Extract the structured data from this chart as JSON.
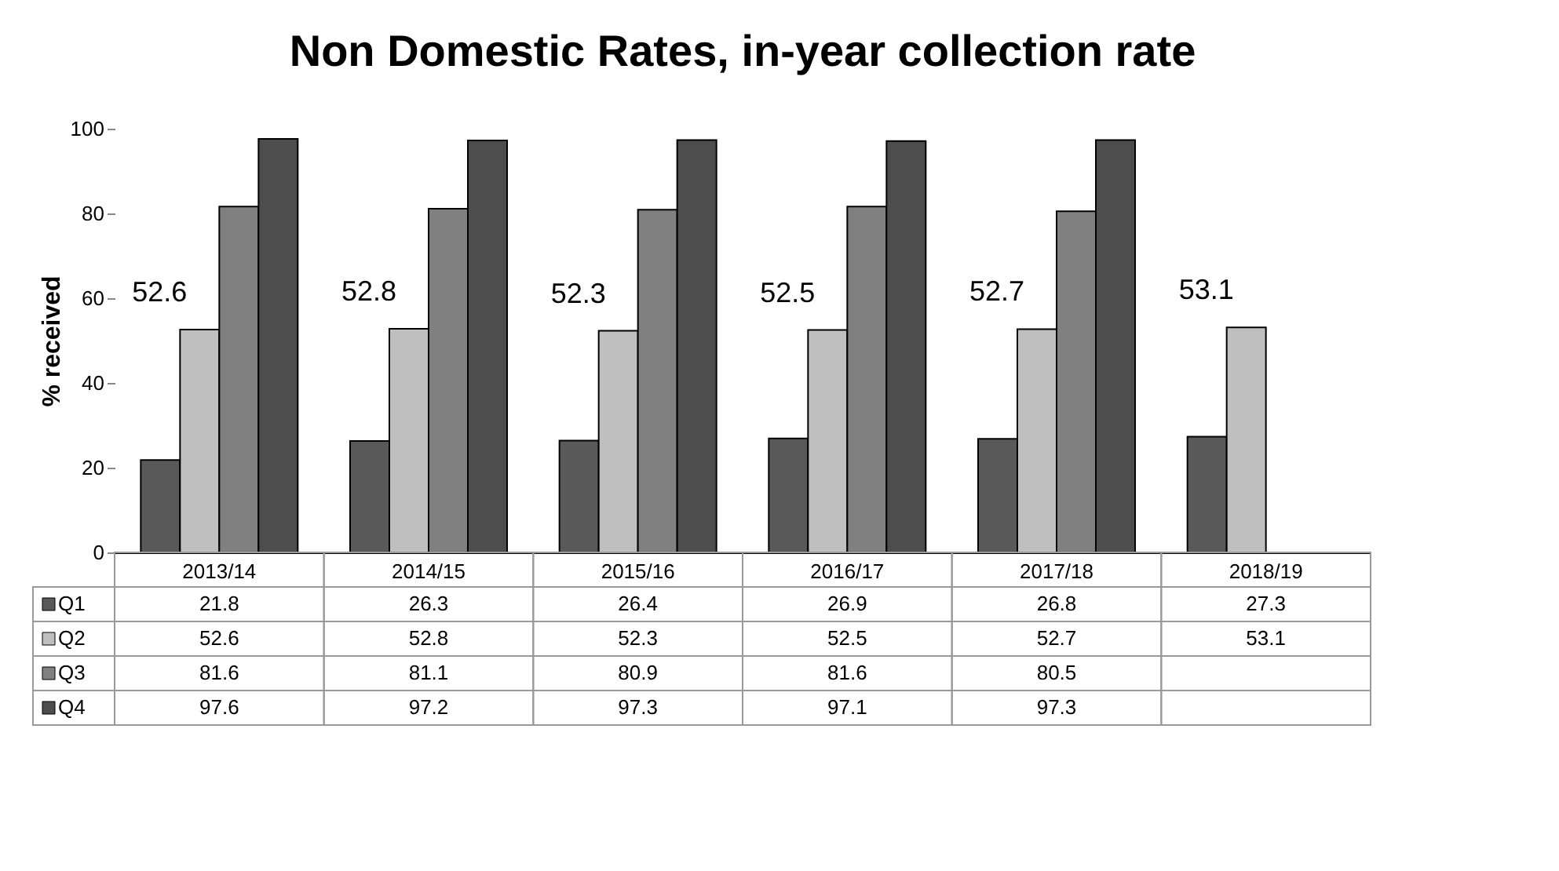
{
  "chart_data": {
    "type": "bar",
    "title": "Non Domestic Rates, in-year collection rate",
    "ylabel": "% received",
    "categories": [
      "2013/14",
      "2014/15",
      "2015/16",
      "2016/17",
      "2017/18",
      "2018/19"
    ],
    "series": [
      {
        "name": "Q1",
        "color": "#595959",
        "values": [
          21.8,
          26.3,
          26.4,
          26.9,
          26.8,
          27.3
        ]
      },
      {
        "name": "Q2",
        "color": "#bfbfbf",
        "values": [
          52.6,
          52.8,
          52.3,
          52.5,
          52.7,
          53.1
        ]
      },
      {
        "name": "Q3",
        "color": "#808080",
        "values": [
          81.6,
          81.1,
          80.9,
          81.6,
          80.5,
          null
        ]
      },
      {
        "name": "Q4",
        "color": "#4d4d4d",
        "values": [
          97.6,
          97.2,
          97.3,
          97.1,
          97.3,
          null
        ]
      }
    ],
    "ylim": [
      0,
      100
    ],
    "yticks": [
      0,
      20,
      40,
      60,
      80,
      100
    ],
    "annotations": [
      {
        "text": "52.6",
        "x": "2013/14",
        "y": 52.6
      },
      {
        "text": "52.8",
        "x": "2014/15",
        "y": 52.8
      },
      {
        "text": "52.3",
        "x": "2015/16",
        "y": 52.3
      },
      {
        "text": "52.5",
        "x": "2016/17",
        "y": 52.5
      },
      {
        "text": "52.7",
        "x": "2017/18",
        "y": 52.7
      },
      {
        "text": "53.1",
        "x": "2018/19",
        "y": 53.1
      }
    ],
    "grid": false,
    "data_labels": true,
    "legend": "bottom"
  }
}
